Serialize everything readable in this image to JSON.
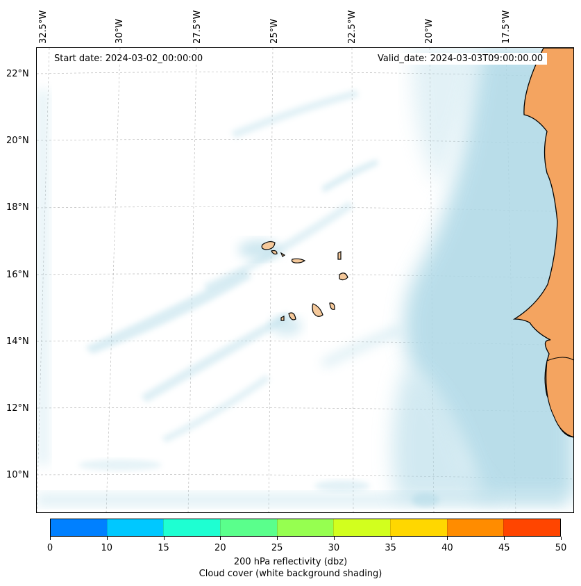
{
  "map": {
    "lon_labels": [
      "32.5°W",
      "30°W",
      "27.5°W",
      "25°W",
      "22.5°W",
      "20°W",
      "17.5°W"
    ],
    "lat_labels": [
      "22°N",
      "20°N",
      "18°N",
      "16°N",
      "14°N",
      "12°N",
      "10°N"
    ],
    "start_date": "Start date: 2024-03-02_00:00:00",
    "valid_date": "Valid_date: 2024-03-03T09:00:00.00",
    "land_color": "#f4a460",
    "cloud_color": "#add8e6"
  },
  "colorbar": {
    "ticks": [
      "0",
      "10",
      "15",
      "20",
      "25",
      "30",
      "35",
      "40",
      "45",
      "50"
    ],
    "colors": [
      "#0080ff",
      "#00c8ff",
      "#1effd2",
      "#5aff8c",
      "#96ff50",
      "#d2ff1e",
      "#ffd700",
      "#ff8c00",
      "#ff4500"
    ],
    "label": "200 hPa reflectivity (dbz)",
    "sublabel": "Cloud cover (white background shading)"
  }
}
